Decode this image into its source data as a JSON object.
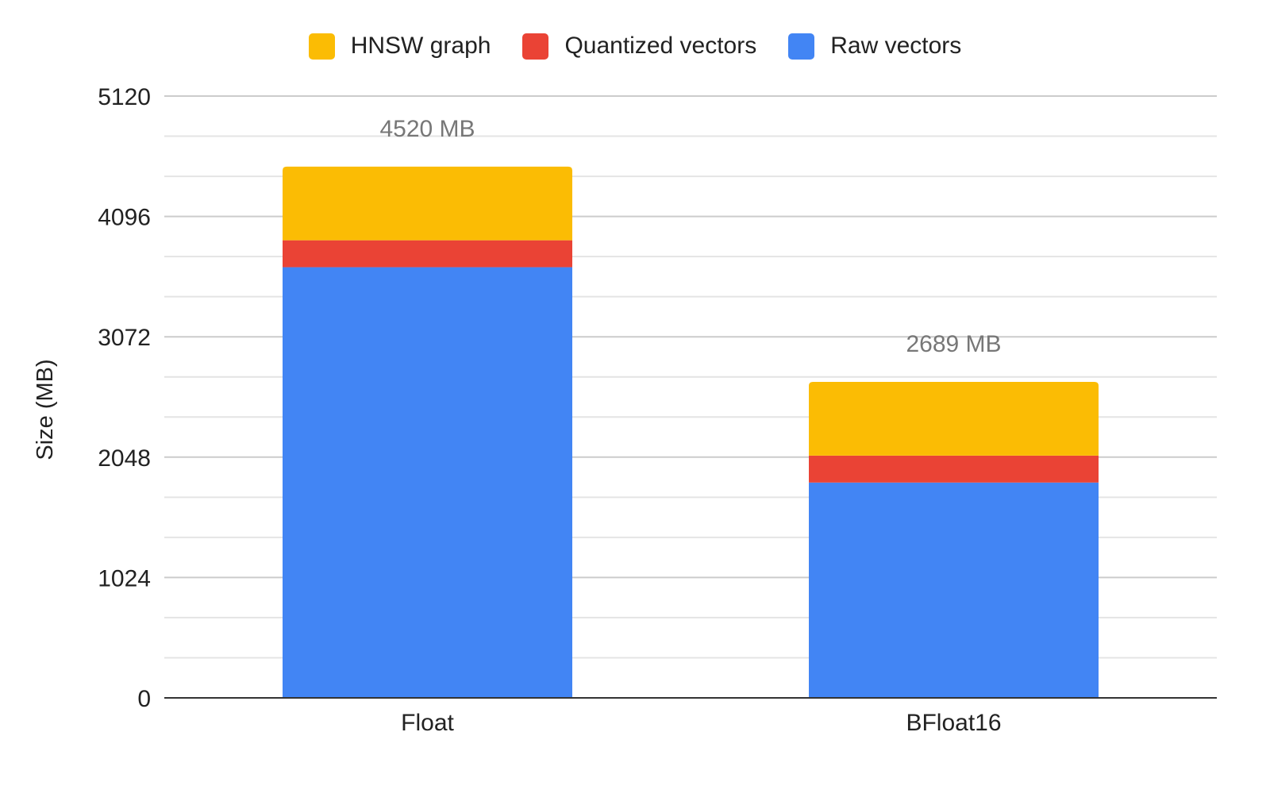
{
  "chart_data": {
    "type": "bar",
    "stacked": true,
    "title": "",
    "xlabel": "",
    "ylabel": "Size (MB)",
    "ylim": [
      0,
      5120
    ],
    "yticks": [
      0,
      1024,
      2048,
      3072,
      4096,
      5120
    ],
    "minor_gridlines_per_major": 3,
    "grid": true,
    "legend_position": "top",
    "categories": [
      "Float",
      "BFloat16"
    ],
    "series": [
      {
        "name": "Raw vectors",
        "color": "#4285F4",
        "values": [
          3664,
          1832
        ]
      },
      {
        "name": "Quantized vectors",
        "color": "#EA4335",
        "values": [
          229,
          229
        ]
      },
      {
        "name": "HNSW graph",
        "color": "#FBBC04",
        "values": [
          627,
          627
        ]
      }
    ],
    "totals": [
      4520,
      2689
    ],
    "total_labels": [
      "4520 MB",
      "2689 MB"
    ],
    "legend_order": [
      "HNSW graph",
      "Quantized vectors",
      "Raw vectors"
    ]
  }
}
